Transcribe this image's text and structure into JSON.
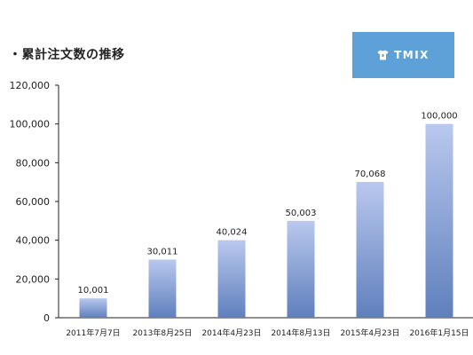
{
  "title": "・累計注文数の推移",
  "logo": {
    "text": "TMIX",
    "icon": "tshirt-icon",
    "background": "#5ea1d9"
  },
  "colors": {
    "bar_top": "#b9c8ee",
    "bar_bottom": "#5f7fbc",
    "label_default": "#222222",
    "label_highlight": "#e0231e"
  },
  "chart_data": {
    "type": "bar",
    "title": "・累計注文数の推移",
    "xlabel": "",
    "ylabel": "",
    "categories": [
      "2011年7月7日",
      "2013年8月25日",
      "2014年4月23日",
      "2014年8月13日",
      "2015年4月23日",
      "2016年1月15日"
    ],
    "values": [
      10001,
      30011,
      40024,
      50003,
      70068,
      100000
    ],
    "value_labels": [
      "10,001",
      "30,011",
      "40,024",
      "50,003",
      "70,068",
      "100,000"
    ],
    "highlight_index": 5,
    "ylim": [
      0,
      120000
    ],
    "yticks": [
      0,
      20000,
      40000,
      60000,
      80000,
      100000,
      120000
    ],
    "ytick_labels": [
      "0",
      "20,000",
      "40,000",
      "60,000",
      "80,000",
      "100,000",
      "120,000"
    ],
    "grid": false,
    "legend": "none"
  }
}
